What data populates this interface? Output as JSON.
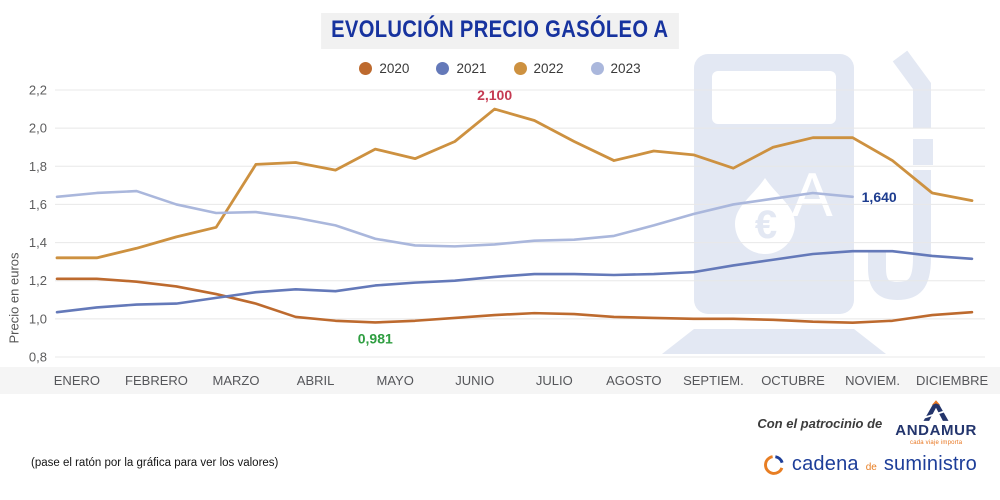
{
  "page": {
    "note": "(pase el ratón por la gráfica para ver los valores)",
    "sponsor_prefix": "Con el patrocinio de",
    "andamur": {
      "name": "ANDAMUR",
      "tagline": "cada viaje importa"
    },
    "cadena": {
      "word1": "cadena",
      "word2": "de",
      "word3": "suministro"
    }
  },
  "chart_data": {
    "type": "line",
    "title": "EVOLUCIÓN PRECIO GASÓLEO A",
    "ylabel": "Precio en euros",
    "ylim": [
      0.8,
      2.2
    ],
    "ytick_labels": [
      "0,8",
      "1,0",
      "1,2",
      "1,4",
      "1,6",
      "1,8",
      "2,0",
      "2,2"
    ],
    "grid": true,
    "legend_position": "top",
    "points_per_month": 2,
    "categories": [
      "ENERO",
      "FEBRERO",
      "MARZO",
      "ABRIL",
      "MAYO",
      "JUNIO",
      "JULIO",
      "AGOSTO",
      "SEPTIEM.",
      "OCTUBRE",
      "NOVIEM.",
      "DICIEMBRE"
    ],
    "series": [
      {
        "name": "2020",
        "color": "#bd6a2e",
        "values": [
          1.21,
          1.21,
          1.195,
          1.17,
          1.13,
          1.08,
          1.01,
          0.99,
          0.981,
          0.99,
          1.005,
          1.02,
          1.03,
          1.025,
          1.01,
          1.005,
          1.0,
          1.0,
          0.995,
          0.985,
          0.98,
          0.99,
          1.02,
          1.035
        ]
      },
      {
        "name": "2021",
        "color": "#6479b9",
        "values": [
          1.035,
          1.06,
          1.075,
          1.08,
          1.11,
          1.14,
          1.155,
          1.145,
          1.175,
          1.19,
          1.2,
          1.22,
          1.235,
          1.235,
          1.23,
          1.235,
          1.245,
          1.28,
          1.31,
          1.34,
          1.355,
          1.355,
          1.33,
          1.315
        ]
      },
      {
        "name": "2022",
        "color": "#cd9140",
        "values": [
          1.32,
          1.32,
          1.37,
          1.43,
          1.48,
          1.81,
          1.82,
          1.78,
          1.89,
          1.84,
          1.93,
          2.1,
          2.04,
          1.93,
          1.83,
          1.88,
          1.86,
          1.79,
          1.9,
          1.95,
          1.95,
          1.83,
          1.66,
          1.62
        ]
      },
      {
        "name": "2023",
        "color": "#aab7dc",
        "values": [
          1.64,
          1.66,
          1.67,
          1.6,
          1.555,
          1.56,
          1.53,
          1.49,
          1.42,
          1.385,
          1.38,
          1.39,
          1.41,
          1.415,
          1.435,
          1.49,
          1.55,
          1.6,
          1.63,
          1.66,
          1.64
        ]
      }
    ],
    "annotations": [
      {
        "series": "2022",
        "index": 11,
        "text": "2,100",
        "color": "#c53a52",
        "placement": "above"
      },
      {
        "series": "2020",
        "index": 8,
        "text": "0,981",
        "color": "#2f9e41",
        "placement": "below"
      },
      {
        "series": "2023",
        "index": 20,
        "text": "1,640",
        "color": "#1d3c8f",
        "placement": "right"
      }
    ]
  }
}
